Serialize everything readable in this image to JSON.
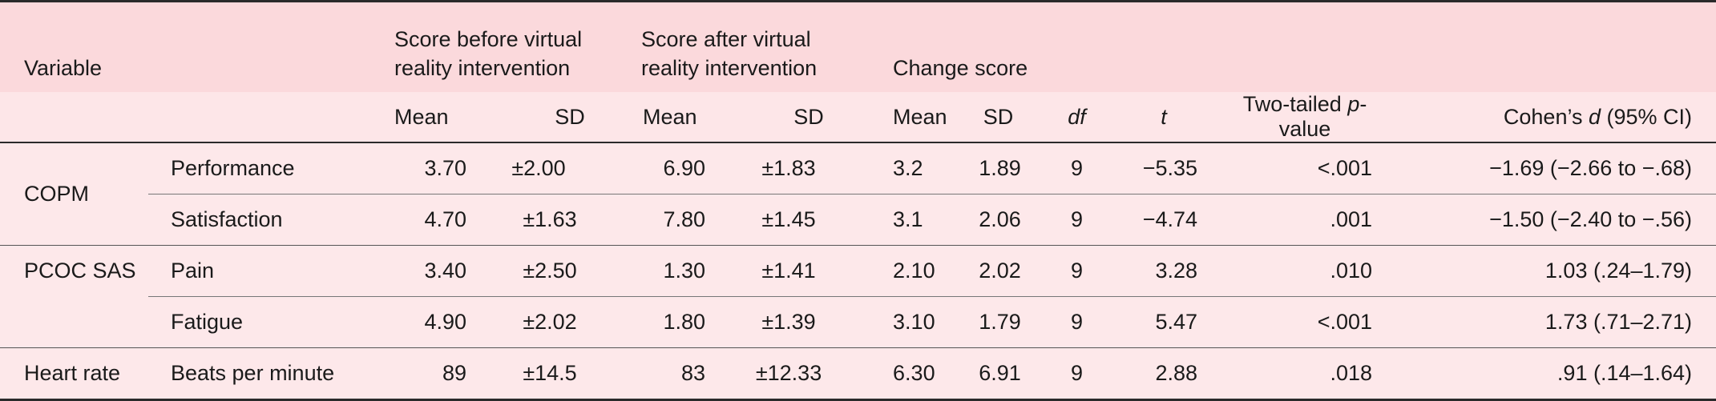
{
  "header": {
    "variable": "Variable",
    "group_before": "Score before virtual reality intervention",
    "group_after": "Score after virtual reality intervention",
    "group_change": "Change score",
    "sub": {
      "mean": "Mean",
      "sd": "SD",
      "df": "df",
      "t": "t",
      "p_prefix": "Two-tailed ",
      "p_italic": "p",
      "p_suffix": "-value",
      "d_prefix": "Cohen’s ",
      "d_italic": "d",
      "d_suffix": " (95% CI)"
    }
  },
  "rows": [
    {
      "group": "COPM",
      "measure": "Performance",
      "before_mean": "3.70",
      "before_sd": "±2.00",
      "after_mean": "6.90",
      "after_sd": "±1.83",
      "change_mean": "3.2",
      "change_sd": "1.89",
      "df": "9",
      "t": "−5.35",
      "p": "<.001",
      "d": "−1.69 (−2.66 to −.68)"
    },
    {
      "group": "",
      "measure": "Satisfaction",
      "before_mean": "4.70",
      "before_sd": "±1.63",
      "after_mean": "7.80",
      "after_sd": "±1.45",
      "change_mean": "3.1",
      "change_sd": "2.06",
      "df": "9",
      "t": "−4.74",
      "p": ".001",
      "d": "−1.50 (−2.40 to −.56)"
    },
    {
      "group": "PCOC SAS",
      "measure": "Pain",
      "before_mean": "3.40",
      "before_sd": "±2.50",
      "after_mean": "1.30",
      "after_sd": "±1.41",
      "change_mean": "2.10",
      "change_sd": "2.02",
      "df": "9",
      "t": "3.28",
      "p": ".010",
      "d": "1.03 (.24–1.79)"
    },
    {
      "group": "",
      "measure": "Fatigue",
      "before_mean": "4.90",
      "before_sd": "±2.02",
      "after_mean": "1.80",
      "after_sd": "±1.39",
      "change_mean": "3.10",
      "change_sd": "1.79",
      "df": "9",
      "t": "5.47",
      "p": "<.001",
      "d": "1.73 (.71–2.71)"
    },
    {
      "group": "Heart rate",
      "measure": "Beats per minute",
      "before_mean": "89",
      "before_sd": "±14.5",
      "after_mean": "83",
      "after_sd": "±12.33",
      "change_mean": "6.30",
      "change_sd": "6.91",
      "df": "9",
      "t": "2.88",
      "p": ".018",
      "d": ".91 (.14–1.64)"
    }
  ]
}
